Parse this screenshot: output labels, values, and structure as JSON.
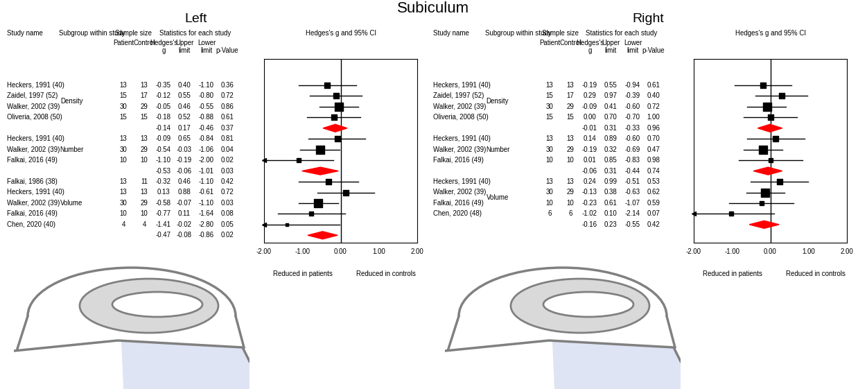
{
  "title": "Subiculum",
  "chart_data": [
    {
      "type": "forest",
      "title": "Left",
      "columns": {
        "study": "Study name",
        "subgroup": "Subgroup within study",
        "sample_size": "Sample size",
        "patient": "Patient",
        "control": "Control",
        "statistics": "Statistics for each study",
        "g": "Hedges's\ng",
        "upper": "Upper\nlimit",
        "lower": "Lower\nlimit",
        "p": "p-Value",
        "plot": "Hedges's g and 95% CI"
      },
      "groups": [
        {
          "name": "Density",
          "studies": [
            {
              "study": "Heckers, 1991 (40)",
              "patient": 13,
              "control": 13,
              "g": "-0.35",
              "upper": "0.40",
              "lower": "-1.10",
              "p": "0.36"
            },
            {
              "study": "Zaidel, 1997 (52)",
              "patient": 15,
              "control": 17,
              "g": "-0.12",
              "upper": "0.55",
              "lower": "-0.80",
              "p": "0.72"
            },
            {
              "study": "Walker, 2002 (39)",
              "patient": 30,
              "control": 29,
              "g": "-0.05",
              "upper": "0.46",
              "lower": "-0.55",
              "p": "0.86"
            },
            {
              "study": "Oliveria, 2008 (50)",
              "patient": 15,
              "control": 15,
              "g": "-0.18",
              "upper": "0.52",
              "lower": "-0.88",
              "p": "0.61"
            }
          ],
          "pooled": {
            "g": "-0.14",
            "upper": "0.17",
            "lower": "-0.46",
            "p": "0.37",
            "color": "#ff0000"
          }
        },
        {
          "name": "Number",
          "studies": [
            {
              "study": "Heckers, 1991 (40)",
              "patient": 13,
              "control": 13,
              "g": "-0.09",
              "upper": "0.65",
              "lower": "-0.84",
              "p": "0.81"
            },
            {
              "study": "Walker, 2002 (39)",
              "patient": 30,
              "control": 29,
              "g": "-0.54",
              "upper": "-0.03",
              "lower": "-1.06",
              "p": "0.04"
            },
            {
              "study": "Falkai, 2016 (49)",
              "patient": 10,
              "control": 10,
              "g": "-1.10",
              "upper": "-0.19",
              "lower": "-2.00",
              "p": "0.02"
            }
          ],
          "pooled": {
            "g": "-0.53",
            "upper": "-0.06",
            "lower": "-1.01",
            "p": "0.03",
            "color": "#ff0000"
          }
        },
        {
          "name": "Volume",
          "studies": [
            {
              "study": "Falkai, 1986 (38)",
              "patient": 13,
              "control": 11,
              "g": "-0.32",
              "upper": "0.46",
              "lower": "-1.10",
              "p": "0.42"
            },
            {
              "study": "Heckers, 1991 (40)",
              "patient": 13,
              "control": 13,
              "g": "0.13",
              "upper": "0.88",
              "lower": "-0.61",
              "p": "0.72"
            },
            {
              "study": "Walker, 2002 (39)",
              "patient": 30,
              "control": 29,
              "g": "-0.58",
              "upper": "-0.07",
              "lower": "-1.10",
              "p": "0.03"
            },
            {
              "study": "Falkai, 2016 (49)",
              "patient": 10,
              "control": 10,
              "g": "-0.77",
              "upper": "0.11",
              "lower": "-1.64",
              "p": "0.08"
            },
            {
              "study": "Chen, 2020 (40)",
              "patient": 4,
              "control": 4,
              "g": "-1.41",
              "upper": "-0.02",
              "lower": "-2.80",
              "p": "0.05"
            }
          ],
          "pooled": {
            "g": "-0.47",
            "upper": "-0.08",
            "lower": "-0.86",
            "p": "0.02",
            "color": "#ff0000"
          }
        }
      ],
      "xlim": [
        -2,
        2
      ],
      "xticks": [
        {
          "value": -2,
          "label": "-2.00"
        },
        {
          "value": -1,
          "label": "-1.00"
        },
        {
          "value": 0,
          "label": "0.00"
        },
        {
          "value": 1,
          "label": "1.00"
        },
        {
          "value": 2,
          "label": "2.00"
        }
      ],
      "annotations": [
        "Reduced in patients",
        "Reduced in controls"
      ],
      "color": "#000000",
      "tick_labels": "x"
    },
    {
      "type": "forest",
      "title": "Right",
      "columns": {
        "study": "Study name",
        "subgroup": "Subgroup within study",
        "sample_size": "Sample size",
        "patient": "Patient",
        "control": "Control",
        "statistics": "Statistics for each study",
        "g": "Hedges's\ng",
        "upper": "Upper\nlimit",
        "lower": "Lower\nlimit",
        "p": "p-Value",
        "plot": "Hedges's g and 95% CI"
      },
      "groups": [
        {
          "name": "Density",
          "studies": [
            {
              "study": "Heckers, 1991 (40)",
              "patient": 13,
              "control": 13,
              "g": "-0.19",
              "upper": "0.55",
              "lower": "-0.94",
              "p": "0.61"
            },
            {
              "study": "Zaidel, 1997 (52)",
              "patient": 15,
              "control": 17,
              "g": "0.29",
              "upper": "0.97",
              "lower": "-0.39",
              "p": "0.40"
            },
            {
              "study": "Walker, 2002 (39)",
              "patient": 30,
              "control": 29,
              "g": "-0.09",
              "upper": "0.41",
              "lower": "-0.60",
              "p": "0.72"
            },
            {
              "study": "Oliveria, 2008 (50)",
              "patient": 15,
              "control": 15,
              "g": "0.00",
              "upper": "0.70",
              "lower": "-0.70",
              "p": "1.00"
            }
          ],
          "pooled": {
            "g": "-0.01",
            "upper": "0.31",
            "lower": "-0.33",
            "p": "0.96",
            "color": "#ff0000"
          }
        },
        {
          "name": "Number",
          "studies": [
            {
              "study": "Heckers, 1991 (40)",
              "patient": 13,
              "control": 13,
              "g": "0.14",
              "upper": "0.89",
              "lower": "-0.60",
              "p": "0.70"
            },
            {
              "study": "Walker, 2002 (39)",
              "patient": 30,
              "control": 29,
              "g": "-0.19",
              "upper": "0.32",
              "lower": "-0.69",
              "p": "0.47"
            },
            {
              "study": "Falkai, 2016 (49)",
              "patient": 10,
              "control": 10,
              "g": "0.01",
              "upper": "0.85",
              "lower": "-0.83",
              "p": "0.98"
            }
          ],
          "pooled": {
            "g": "-0.06",
            "upper": "0.31",
            "lower": "-0.44",
            "p": "0.74",
            "color": "#ff0000"
          }
        },
        {
          "name": "Volume",
          "studies": [
            {
              "study": "Heckers, 1991 (40)",
              "patient": 13,
              "control": 13,
              "g": "0.24",
              "upper": "0.99",
              "lower": "-0.51",
              "p": "0.53"
            },
            {
              "study": "Walker, 2002 (39)",
              "patient": 30,
              "control": 29,
              "g": "-0.13",
              "upper": "0.38",
              "lower": "-0.63",
              "p": "0.62"
            },
            {
              "study": "Falkai, 2016 (49)",
              "patient": 10,
              "control": 10,
              "g": "-0.23",
              "upper": "0.61",
              "lower": "-1.07",
              "p": "0.59"
            },
            {
              "study": "Chen, 2020 (48)",
              "patient": 6,
              "control": 6,
              "g": "-1.02",
              "upper": "0.10",
              "lower": "-2.14",
              "p": "0.07"
            }
          ],
          "pooled": {
            "g": "-0.16",
            "upper": "0.23",
            "lower": "-0.55",
            "p": "0.42",
            "color": "#ff0000"
          }
        }
      ],
      "xlim": [
        -2,
        2
      ],
      "xticks": [
        {
          "value": -2,
          "label": "-2.00"
        },
        {
          "value": -1,
          "label": "-1.00"
        },
        {
          "value": 0,
          "label": "0.00"
        },
        {
          "value": 1,
          "label": "1.00"
        },
        {
          "value": 2,
          "label": "2.00"
        }
      ],
      "annotations": [
        "Reduced in patients",
        "Reduced in controls"
      ],
      "color": "#000000",
      "tick_labels": "x"
    }
  ]
}
